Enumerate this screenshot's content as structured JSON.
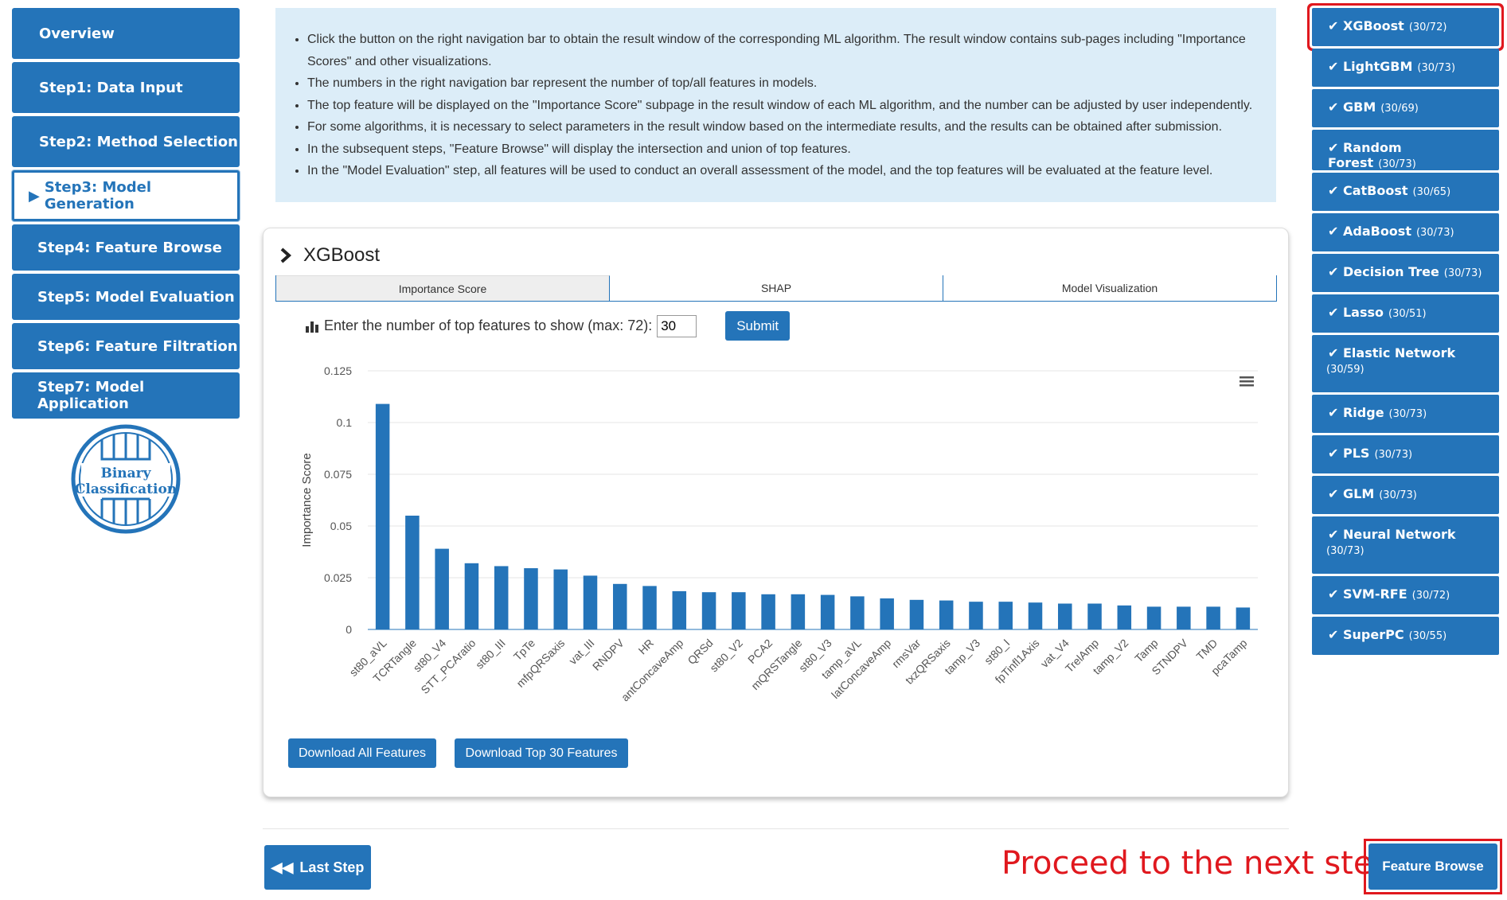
{
  "left_nav": [
    "Overview",
    "Step1: Data Input",
    "Step2: Method Selection",
    "Step3: Model Generation",
    "Step4: Feature Browse",
    "Step5: Model Evaluation",
    "Step6: Feature Filtration",
    "Step7: Model Application"
  ],
  "logo_text": [
    "Binary",
    "Classification"
  ],
  "info": [
    "Click the button on the right navigation bar to obtain the result window of the corresponding ML algorithm. The result window contains sub-pages including \"Importance Scores\" and other visualizations.",
    "The numbers in the right navigation bar represent the number of top/all features in models.",
    "The top feature will be displayed on the \"Importance Score\" subpage in the result window of each ML algorithm, and the number can be adjusted by user independently.",
    "For some algorithms, it is necessary to select parameters in the result window based on the intermediate results, and the results can be obtained after submission.",
    "In the subsequent steps, \"Feature Browse\" will display the intersection and union of top features.",
    "In the \"Model Evaluation\" step, all features will be used to conduct an overall assessment of the model, and the top features will be evaluated at the feature level."
  ],
  "card": {
    "title": "XGBoost",
    "tabs": [
      "Importance Score",
      "SHAP",
      "Model Visualization"
    ],
    "prompt": "Enter the number of top features to show (max: 72):",
    "top_n": "30",
    "submit": "Submit",
    "download_all": "Download All Features",
    "download_top": "Download Top 30 Features"
  },
  "chart_data": {
    "type": "bar",
    "ylabel": "Importance Score",
    "ylim": [
      0,
      0.125
    ],
    "yticks": [
      "0",
      "0.025",
      "0.05",
      "0.075",
      "0.1",
      "0.125"
    ],
    "color": "#2474b9",
    "categories": [
      "st80_aVL",
      "TCRTangle",
      "st80_V4",
      "STT_PCAratio",
      "st80_III",
      "TpTe",
      "mfpQRSaxis",
      "vat_III",
      "RNDPV",
      "HR",
      "antConcaveAmp",
      "QRSd",
      "st80_V2",
      "PCA2",
      "mQRSTangle",
      "st80_V3",
      "tamp_aVL",
      "latConcaveAmp",
      "rmsVar",
      "txzQRSaxis",
      "tamp_V3",
      "st80_I",
      "fpTinfl1Axis",
      "vat_V4",
      "TrelAmp",
      "tamp_V2",
      "Tamp",
      "STNDPV",
      "TMD",
      "pcaTamp"
    ],
    "values": [
      0.109,
      0.055,
      0.039,
      0.032,
      0.0306,
      0.0296,
      0.029,
      0.026,
      0.022,
      0.021,
      0.0185,
      0.018,
      0.018,
      0.017,
      0.017,
      0.0167,
      0.016,
      0.015,
      0.0143,
      0.014,
      0.0134,
      0.0134,
      0.013,
      0.0125,
      0.0125,
      0.0116,
      0.011,
      0.011,
      0.011,
      0.0106
    ]
  },
  "footer": {
    "last_step": "Last Step",
    "proceed": "Proceed to the next step",
    "next": "Feature Browse"
  },
  "right_nav": [
    {
      "name": "XGBoost",
      "count": "(30/72)"
    },
    {
      "name": "LightGBM",
      "count": "(30/73)"
    },
    {
      "name": "GBM",
      "count": "(30/69)"
    },
    {
      "name": "Random Forest",
      "count": "(30/73)"
    },
    {
      "name": "CatBoost",
      "count": "(30/65)"
    },
    {
      "name": "AdaBoost",
      "count": "(30/73)"
    },
    {
      "name": "Decision Tree",
      "count": "(30/73)"
    },
    {
      "name": "Lasso",
      "count": "(30/51)"
    },
    {
      "name": "Elastic Network",
      "count": "(30/59)"
    },
    {
      "name": "Ridge",
      "count": "(30/73)"
    },
    {
      "name": "PLS",
      "count": "(30/73)"
    },
    {
      "name": "GLM",
      "count": "(30/73)"
    },
    {
      "name": "Neural Network",
      "count": "(30/73)"
    },
    {
      "name": "SVM-RFE",
      "count": "(30/72)"
    },
    {
      "name": "SuperPC",
      "count": "(30/55)"
    }
  ]
}
